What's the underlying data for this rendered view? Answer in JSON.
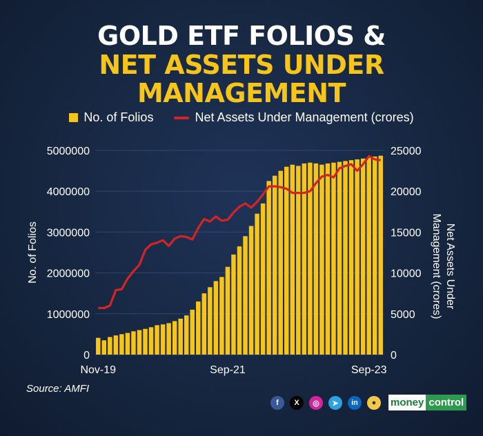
{
  "title": {
    "line1": "GOLD ETF FOLIOS &",
    "line2": "NET ASSETS UNDER",
    "line3": "MANAGEMENT"
  },
  "source": "Source: AMFI",
  "brand": {
    "part1": "money",
    "part2": "control"
  },
  "colors": {
    "bars": "#f7c41a",
    "line": "#d42424",
    "title_accent": "#f7c41a",
    "background": "#15243f"
  },
  "social_icons": [
    "facebook-icon",
    "x-icon",
    "instagram-icon",
    "telegram-icon",
    "linkedin-icon",
    "koo-icon"
  ],
  "chart_data": {
    "type": "bar",
    "x_tick_labels": [
      "Nov-19",
      "Sep-21",
      "Sep-23"
    ],
    "x_tick_indices": [
      0,
      22,
      46
    ],
    "ylabel": "No. of Folios",
    "y2label": "Net Assets Under Management (crores)",
    "ylim": [
      0,
      5000000
    ],
    "y2lim": [
      0,
      25000
    ],
    "yticks": [
      "0",
      "1000000",
      "2000000",
      "3000000",
      "4000000",
      "5000000"
    ],
    "y2ticks": [
      "0",
      "5000",
      "10000",
      "15000",
      "20000",
      "25000"
    ],
    "grid": true,
    "legend_position": "top",
    "series": [
      {
        "name": "No. of Folios",
        "type": "bar",
        "axis": "left",
        "values": [
          410000,
          350000,
          430000,
          470000,
          500000,
          530000,
          570000,
          600000,
          630000,
          670000,
          720000,
          740000,
          770000,
          820000,
          880000,
          960000,
          1100000,
          1300000,
          1500000,
          1650000,
          1800000,
          1900000,
          2150000,
          2450000,
          2650000,
          2900000,
          3150000,
          3450000,
          3700000,
          4250000,
          4380000,
          4500000,
          4600000,
          4650000,
          4620000,
          4680000,
          4700000,
          4680000,
          4650000,
          4680000,
          4700000,
          4720000,
          4740000,
          4760000,
          4780000,
          4800000,
          4830000,
          4850000,
          4870000
        ]
      },
      {
        "name": "Net Assets Under Management (crores)",
        "type": "line",
        "axis": "right",
        "values": [
          5700,
          5700,
          6000,
          7900,
          8000,
          9300,
          10200,
          11000,
          12800,
          13500,
          13700,
          14000,
          13300,
          14200,
          14500,
          14400,
          14100,
          15500,
          16600,
          16300,
          16900,
          16400,
          16500,
          17400,
          18100,
          18500,
          18000,
          18700,
          19600,
          20600,
          20600,
          20500,
          20300,
          19800,
          19800,
          19800,
          20000,
          21000,
          21800,
          22000,
          21700,
          22800,
          23100,
          23300,
          22500,
          23300,
          24300,
          23900,
          23800
        ]
      }
    ]
  }
}
